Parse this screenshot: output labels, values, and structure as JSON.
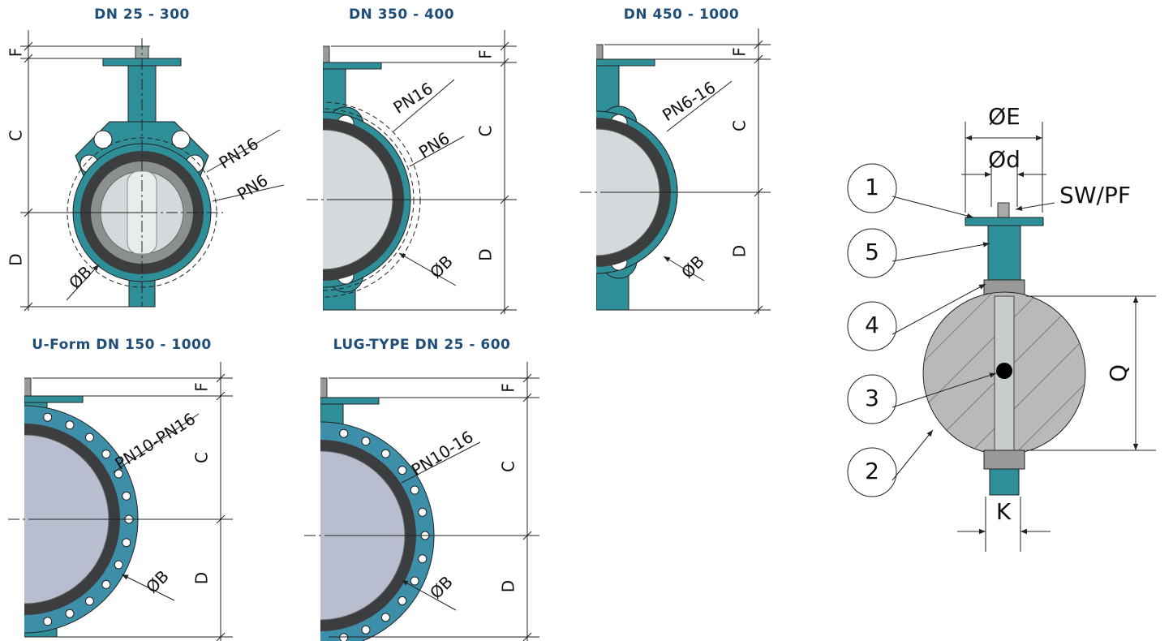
{
  "panels": [
    {
      "title": "DN 25 - 300",
      "dims": [
        "F",
        "C",
        "D"
      ],
      "diameter": "ØB",
      "pressure": [
        "PN16",
        "PN6"
      ]
    },
    {
      "title": "DN 350 - 400",
      "dims": [
        "F",
        "C",
        "D"
      ],
      "diameter": "ØB",
      "pressure": [
        "PN16",
        "PN6"
      ]
    },
    {
      "title": "DN 450 - 1000",
      "dims": [
        "F",
        "C",
        "D"
      ],
      "diameter": "ØB",
      "pressure": [
        "PN6-16"
      ]
    },
    {
      "title": "U-Form DN 150 - 1000",
      "dims": [
        "F",
        "C",
        "D"
      ],
      "diameter": "ØB",
      "pressure": [
        "PN10-PN16"
      ]
    },
    {
      "title": "LUG-TYPE DN 25 - 600",
      "dims": [
        "F",
        "C",
        "D"
      ],
      "diameter": "ØB",
      "pressure": [
        "PN10-16"
      ]
    }
  ],
  "detail": {
    "callouts": [
      "1",
      "5",
      "4",
      "3",
      "2"
    ],
    "E": "ØE",
    "d": "Ød",
    "drive": "SW/PF",
    "Q": "Q",
    "K": "K"
  }
}
